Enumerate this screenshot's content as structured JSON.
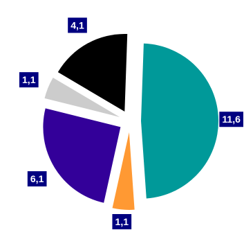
{
  "chart_data": {
    "type": "pie",
    "title": "",
    "legend": "none",
    "exploded": true,
    "label_style": {
      "background": "#000080",
      "text_color": "#ffffff"
    },
    "slices": [
      {
        "value": 11.6,
        "label": "11,6",
        "color": "#009999"
      },
      {
        "value": 1.1,
        "label": "1,1",
        "color": "#ff9933"
      },
      {
        "value": 6.1,
        "label": "6,1",
        "color": "#330099"
      },
      {
        "value": 1.1,
        "label": "1,1",
        "color": "#cccccc"
      },
      {
        "value": 4.1,
        "label": "4,1",
        "color": "#000000"
      }
    ]
  }
}
